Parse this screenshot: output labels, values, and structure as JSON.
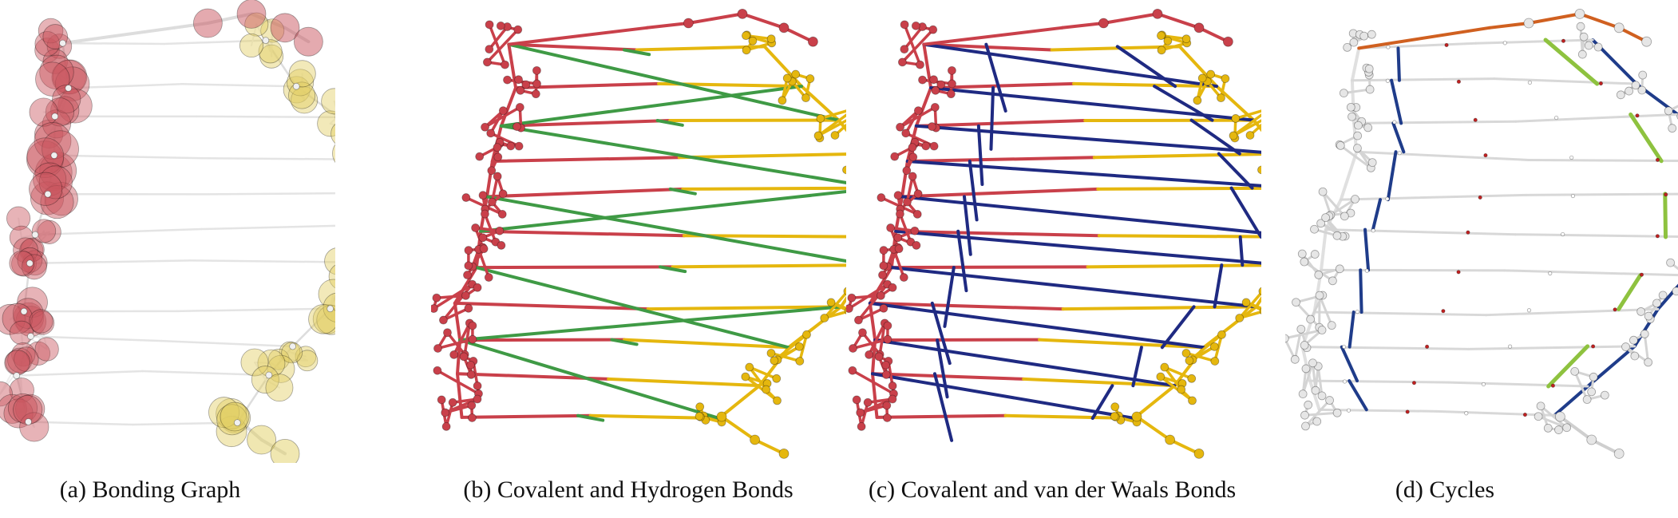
{
  "figure": {
    "panels": [
      {
        "id": "a",
        "label": "(a)",
        "title": "Bonding Graph",
        "colors": {
          "primary": "#c9565f",
          "secondary": "#e2cf63",
          "bond": "#e6e6e6",
          "atom": "#e8e8e8"
        }
      },
      {
        "id": "b",
        "label": "(b)",
        "title": "Covalent and Hydrogen Bonds",
        "colors": {
          "primary": "#c9404a",
          "secondary": "#e5b70e",
          "bond": "#3f9a45"
        }
      },
      {
        "id": "c",
        "label": "(c)",
        "title": "Covalent and van der Waals Bonds",
        "colors": {
          "primary": "#c9404a",
          "secondary": "#e5b70e",
          "bond": "#1f2a82"
        }
      },
      {
        "id": "d",
        "label": "(d)",
        "title": "Cycles",
        "colors": {
          "primary": "#e0e0e0",
          "secondary": "#1f3c8a",
          "bond": "#8ec23f",
          "accent": "#d06020",
          "accent2": "#c02020"
        }
      }
    ]
  }
}
